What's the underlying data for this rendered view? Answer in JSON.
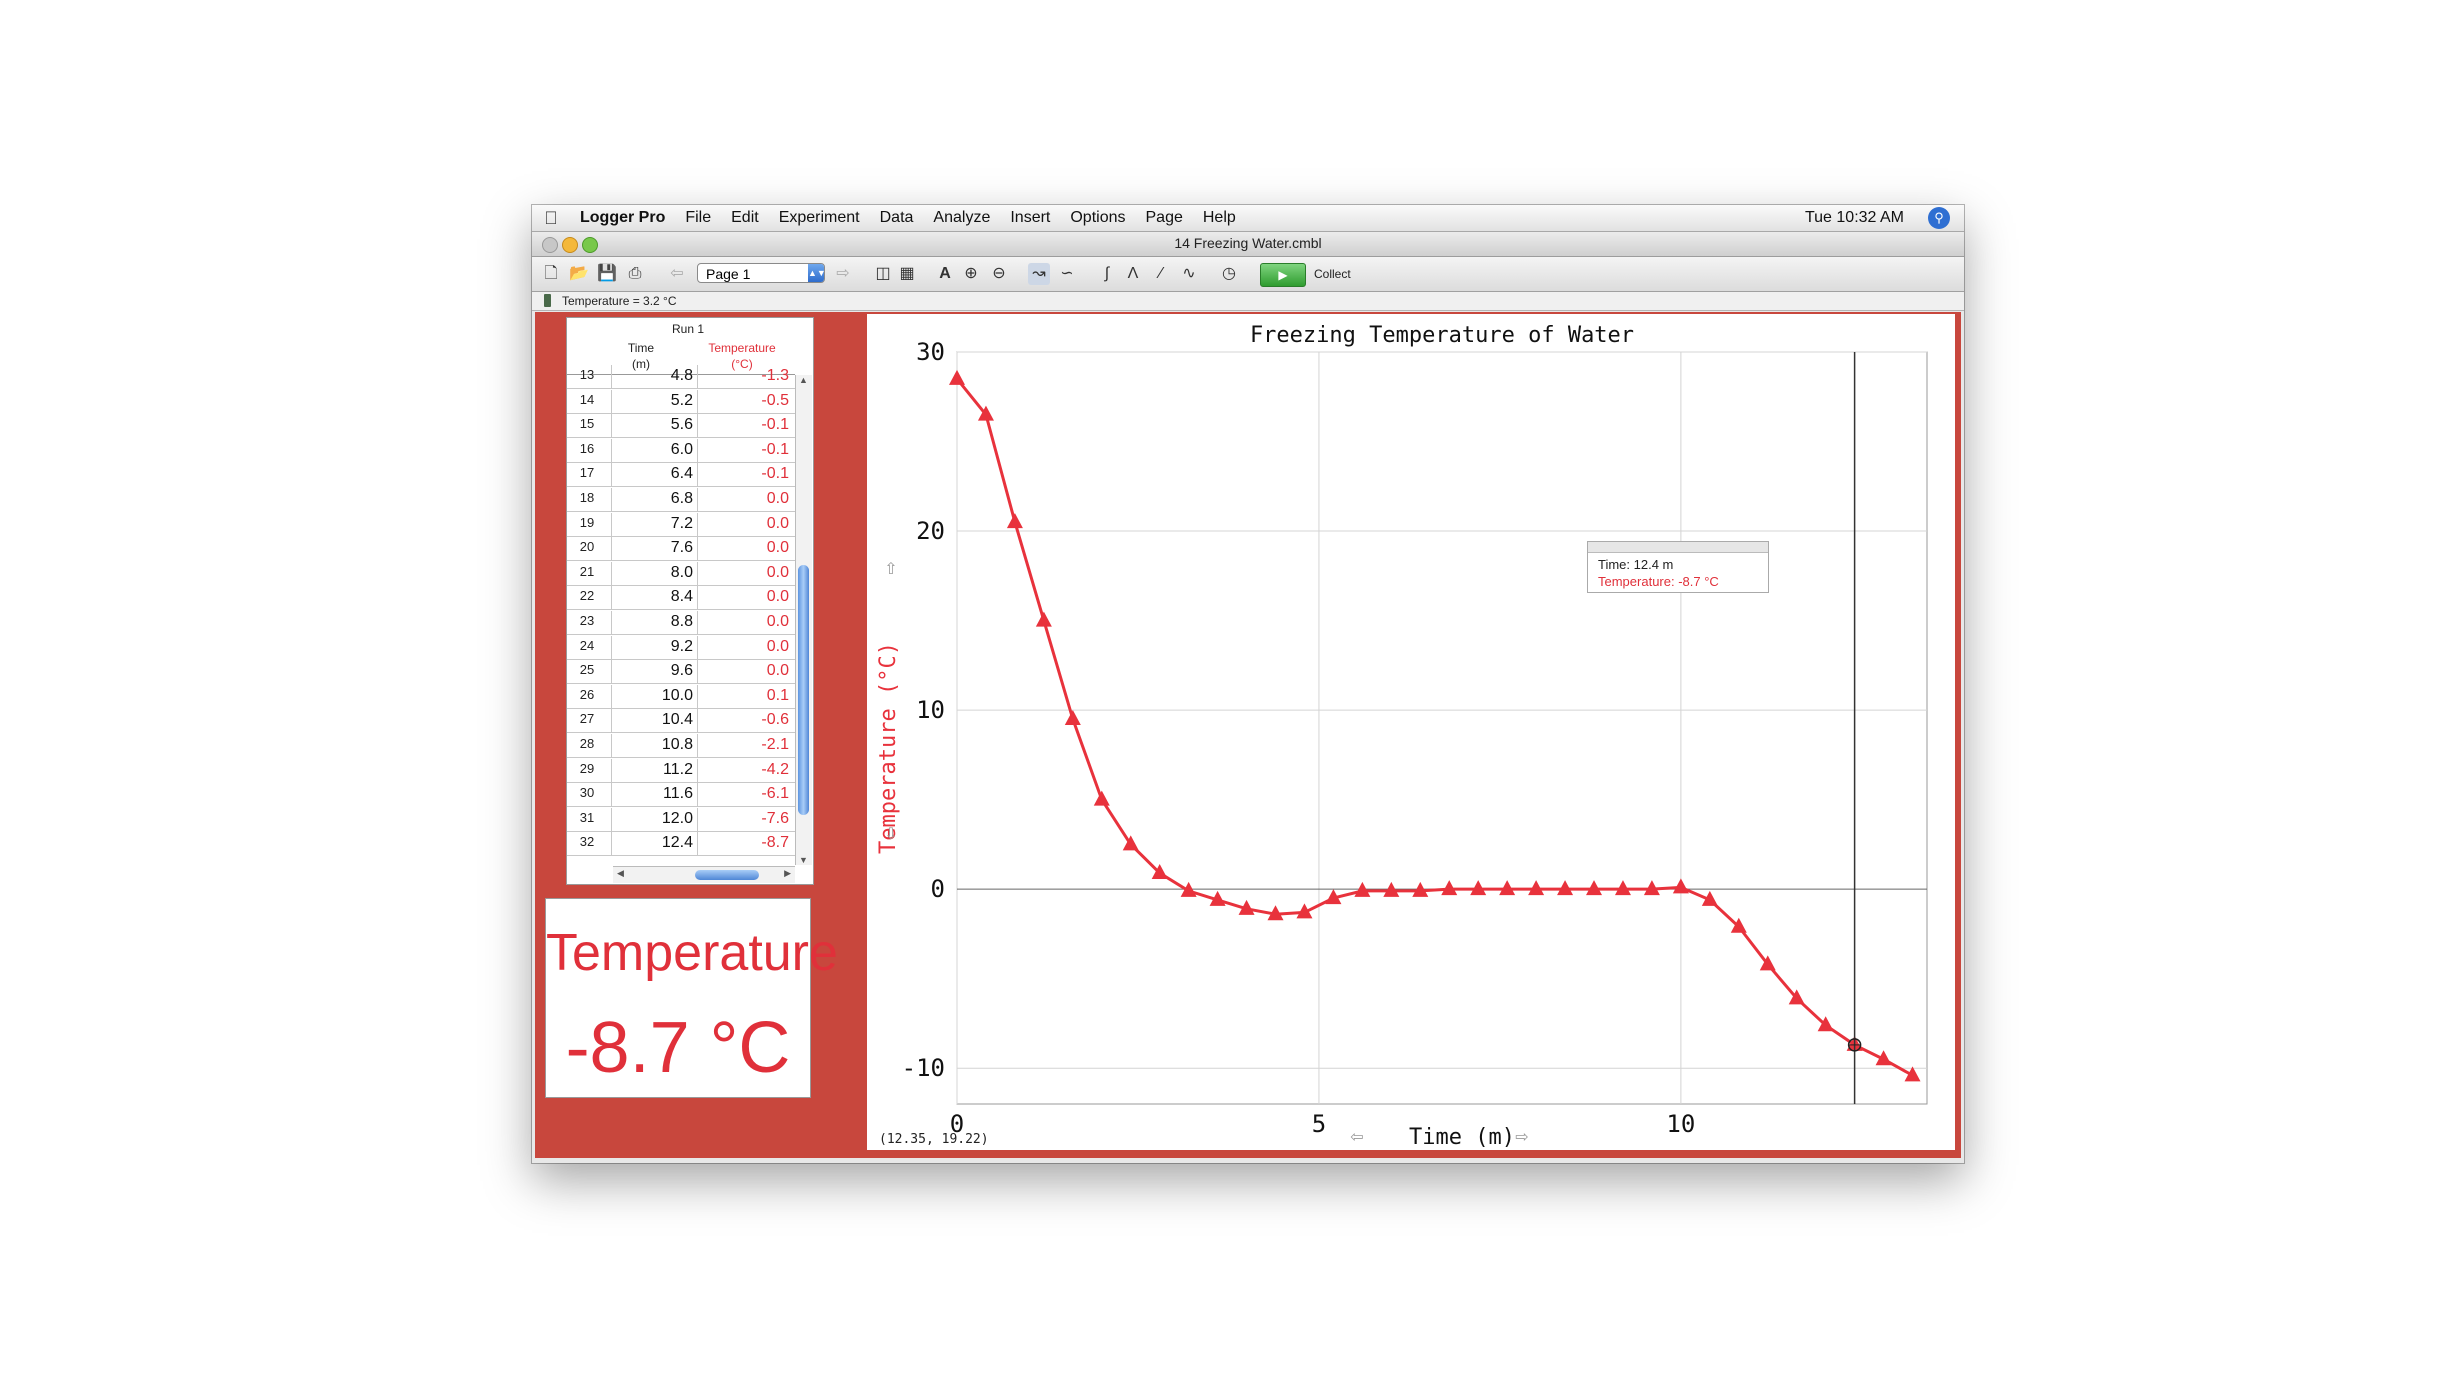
{
  "menubar": {
    "items": [
      "Logger Pro",
      "File",
      "Edit",
      "Experiment",
      "Data",
      "Analyze",
      "Insert",
      "Options",
      "Page",
      "Help"
    ],
    "clock": "Tue 10:32 AM"
  },
  "window": {
    "title": "14 Freezing Water.cmbl"
  },
  "toolbar": {
    "page_select": "Page 1",
    "collect_label": "Collect"
  },
  "sensor": {
    "readout": "Temperature =   3.2 °C"
  },
  "table": {
    "run": "Run 1",
    "col_time": "Time",
    "col_time_unit": "(m)",
    "col_temp": "Temperature",
    "col_temp_unit": "(°C)",
    "rows": [
      {
        "n": "13",
        "t": "4.8",
        "v": "-1.3"
      },
      {
        "n": "14",
        "t": "5.2",
        "v": "-0.5"
      },
      {
        "n": "15",
        "t": "5.6",
        "v": "-0.1"
      },
      {
        "n": "16",
        "t": "6.0",
        "v": "-0.1"
      },
      {
        "n": "17",
        "t": "6.4",
        "v": "-0.1"
      },
      {
        "n": "18",
        "t": "6.8",
        "v": "0.0"
      },
      {
        "n": "19",
        "t": "7.2",
        "v": "0.0"
      },
      {
        "n": "20",
        "t": "7.6",
        "v": "0.0"
      },
      {
        "n": "21",
        "t": "8.0",
        "v": "0.0"
      },
      {
        "n": "22",
        "t": "8.4",
        "v": "0.0"
      },
      {
        "n": "23",
        "t": "8.8",
        "v": "0.0"
      },
      {
        "n": "24",
        "t": "9.2",
        "v": "0.0"
      },
      {
        "n": "25",
        "t": "9.6",
        "v": "0.0"
      },
      {
        "n": "26",
        "t": "10.0",
        "v": "0.1"
      },
      {
        "n": "27",
        "t": "10.4",
        "v": "-0.6"
      },
      {
        "n": "28",
        "t": "10.8",
        "v": "-2.1"
      },
      {
        "n": "29",
        "t": "11.2",
        "v": "-4.2"
      },
      {
        "n": "30",
        "t": "11.6",
        "v": "-6.1"
      },
      {
        "n": "31",
        "t": "12.0",
        "v": "-7.6"
      },
      {
        "n": "32",
        "t": "12.4",
        "v": "-8.7"
      }
    ]
  },
  "meter": {
    "label": "Temperature",
    "value": "-8.7 °C"
  },
  "examine": {
    "time": "Time: 12.4 m",
    "temp": "Temperature: -8.7 °C"
  },
  "coord": "(12.35, 19.22)",
  "colors": {
    "series": "#e8323c",
    "panel": "#c8473d"
  },
  "chart_data": {
    "type": "line",
    "title": "Freezing Temperature of Water",
    "xlabel": "Time (m)",
    "ylabel": "Temperature (°C)",
    "xlim": [
      0,
      13.4
    ],
    "ylim": [
      -12,
      30
    ],
    "xticks": [
      0,
      5,
      10
    ],
    "yticks": [
      -10,
      0,
      10,
      20,
      30
    ],
    "grid": true,
    "cursor_x": 12.4,
    "series": [
      {
        "marker": "triangle",
        "x": [
          0,
          0.4,
          0.8,
          1.2,
          1.6,
          2.0,
          2.4,
          2.8,
          3.2,
          3.6,
          4.0,
          4.4,
          4.8,
          5.2,
          5.6,
          6.0,
          6.4,
          6.8,
          7.2,
          7.6,
          8.0,
          8.4,
          8.8,
          9.2,
          9.6,
          10.0,
          10.4,
          10.8,
          11.2,
          11.6,
          12.0,
          12.4,
          12.8,
          13.2
        ],
        "y": [
          28.5,
          26.5,
          20.5,
          15.0,
          9.5,
          5.0,
          2.5,
          0.9,
          -0.1,
          -0.6,
          -1.1,
          -1.4,
          -1.3,
          -0.5,
          -0.1,
          -0.1,
          -0.1,
          0.0,
          0.0,
          0.0,
          0.0,
          0.0,
          0.0,
          0.0,
          0.0,
          0.1,
          -0.6,
          -2.1,
          -4.2,
          -6.1,
          -7.6,
          -8.7,
          -9.5,
          -10.4
        ]
      }
    ]
  }
}
